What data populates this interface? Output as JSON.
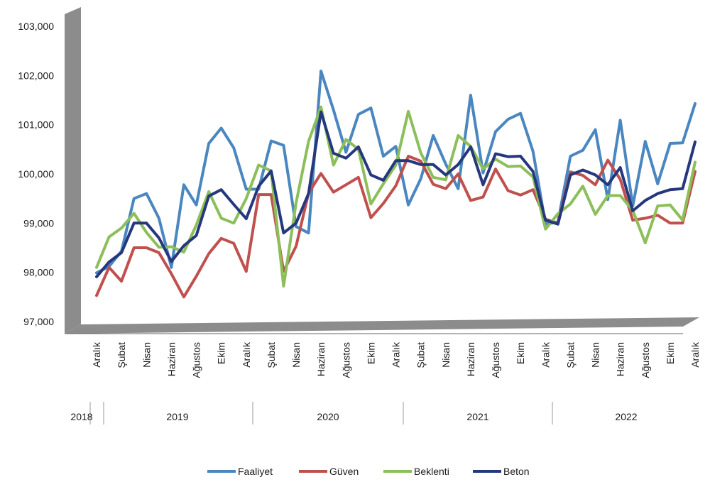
{
  "chart_data": {
    "type": "line",
    "ylim": [
      97000,
      103000
    ],
    "y_ticks": [
      "97,000",
      "98,000",
      "99,000",
      "100,000",
      "101,000",
      "102,000",
      "103,000"
    ],
    "y_tick_values": [
      97000,
      98000,
      99000,
      100000,
      101000,
      102000,
      103000
    ],
    "x": [
      "2018-12",
      "2019-01",
      "2019-02",
      "2019-03",
      "2019-04",
      "2019-05",
      "2019-06",
      "2019-07",
      "2019-08",
      "2019-09",
      "2019-10",
      "2019-11",
      "2019-12",
      "2020-01",
      "2020-02",
      "2020-03",
      "2020-04",
      "2020-05",
      "2020-06",
      "2020-07",
      "2020-08",
      "2020-09",
      "2020-10",
      "2020-11",
      "2020-12",
      "2021-01",
      "2021-02",
      "2021-03",
      "2021-04",
      "2021-05",
      "2021-06",
      "2021-07",
      "2021-08",
      "2021-09",
      "2021-10",
      "2021-11",
      "2021-12",
      "2022-01",
      "2022-02",
      "2022-03",
      "2022-04",
      "2022-05",
      "2022-06",
      "2022-07",
      "2022-08",
      "2022-09",
      "2022-10",
      "2022-11",
      "2022-12"
    ],
    "x_tick_labels": [
      "Aralık",
      "Şubat",
      "Nisan",
      "Haziran",
      "Ağustos",
      "Ekim",
      "Aralık",
      "Şubat",
      "Nisan",
      "Haziran",
      "Ağustos",
      "Ekim",
      "Aralık",
      "Şubat",
      "Nisan",
      "Haziran",
      "Ağustos",
      "Ekim",
      "Aralık",
      "Şubat",
      "Nisan",
      "Haziran",
      "Ağustos",
      "Ekim",
      "Aralık"
    ],
    "year_labels": [
      "2018",
      "2019",
      "2020",
      "2021",
      "2022"
    ],
    "legend_position": "bottom",
    "grid": false,
    "series": [
      {
        "name": "Faaliyet",
        "color": "#4a86c0",
        "values": [
          97990,
          98120,
          98430,
          99500,
          99600,
          99100,
          98100,
          99780,
          99370,
          100620,
          100930,
          100530,
          99690,
          99690,
          100670,
          100580,
          98930,
          98800,
          102090,
          101300,
          100440,
          101210,
          101340,
          100360,
          100560,
          99370,
          99900,
          100780,
          100200,
          99700,
          101600,
          100020,
          100860,
          101110,
          101230,
          100460,
          98980,
          99020,
          100360,
          100480,
          100900,
          99480,
          101090,
          99350,
          100660,
          99800,
          100620,
          100630,
          101430
        ]
      },
      {
        "name": "Güven",
        "color": "#c0504d",
        "values": [
          97530,
          98100,
          97820,
          98500,
          98500,
          98400,
          97970,
          97500,
          97920,
          98380,
          98690,
          98590,
          98020,
          99580,
          99580,
          98020,
          98530,
          99610,
          100010,
          99630,
          99780,
          99930,
          99110,
          99400,
          99760,
          100360,
          100260,
          99790,
          99700,
          100000,
          99460,
          99530,
          100100,
          99660,
          99570,
          99680,
          99080,
          99000,
          100040,
          99970,
          99780,
          100280,
          99890,
          99060,
          99100,
          99160,
          99000,
          99000,
          100050
        ]
      },
      {
        "name": "Beklenti",
        "color": "#8cbf5a",
        "values": [
          98100,
          98720,
          98900,
          99200,
          98810,
          98510,
          98520,
          98410,
          98960,
          99640,
          99100,
          99000,
          99500,
          100180,
          100060,
          97720,
          99410,
          100660,
          101360,
          100180,
          100700,
          100500,
          99390,
          99800,
          100180,
          101270,
          100430,
          99930,
          99880,
          100780,
          100560,
          100100,
          100300,
          100150,
          100160,
          99940,
          98880,
          99190,
          99390,
          99750,
          99180,
          99560,
          99560,
          99260,
          98600,
          99350,
          99370,
          99060,
          100240
        ]
      },
      {
        "name": "Beton",
        "color": "#25387e",
        "values": [
          97910,
          98210,
          98400,
          99000,
          99000,
          98700,
          98220,
          98540,
          98750,
          99550,
          99680,
          99380,
          99090,
          99750,
          100060,
          98800,
          99000,
          99600,
          101260,
          100420,
          100320,
          100550,
          99980,
          99870,
          100270,
          100270,
          100190,
          100190,
          99980,
          100190,
          100550,
          99780,
          100410,
          100350,
          100360,
          100050,
          99060,
          98980,
          99980,
          100080,
          99980,
          99780,
          100130,
          99250,
          99460,
          99600,
          99680,
          99700,
          100650
        ]
      }
    ]
  }
}
